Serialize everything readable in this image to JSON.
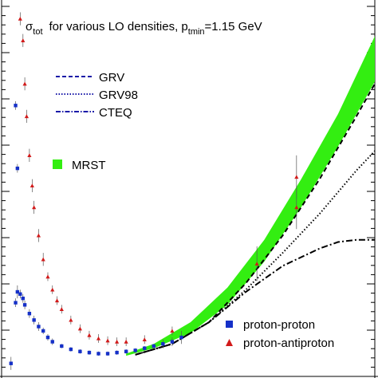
{
  "chart_data": {
    "type": "scatter",
    "title": {
      "sigma": "σ",
      "sigma_sub": "tot",
      "text": "for various LO densities, p",
      "p_sub": "tmin",
      "tail": "=1.15 GeV"
    },
    "xlabel": "",
    "ylabel": "",
    "xlim": [
      1.0,
      5.0
    ],
    "ylim": [
      30,
      200
    ],
    "grid": false,
    "legend_top": {
      "placement": "top-left",
      "entries": [
        {
          "label": "GRV",
          "style": "dashed",
          "color": "#1a1aa8"
        },
        {
          "label": "GRV98",
          "style": "dotted",
          "color": "#1a1aa8"
        },
        {
          "label": "CTEQ",
          "style": "dashdot",
          "color": "#1a1aa8"
        }
      ]
    },
    "legend_mrst": {
      "label": "MRST",
      "color": "#33ee11"
    },
    "legend_bottom": {
      "placement": "bottom-right",
      "entries": [
        {
          "label": "proton-proton",
          "marker": "square",
          "color": "#1530c8"
        },
        {
          "label": "proton-antiproton",
          "marker": "triangle",
          "color": "#d21a1a"
        }
      ]
    },
    "series": [
      {
        "name": "MRST",
        "kind": "band",
        "color": "#33ee11",
        "x": [
          2.3,
          2.6,
          3.0,
          3.4,
          3.8,
          4.2,
          4.6,
          5.0
        ],
        "lower": [
          39.5,
          43,
          50,
          63,
          83,
          108,
          136,
          166
        ],
        "upper": [
          40.5,
          45,
          55,
          71,
          93,
          121,
          151,
          187
        ]
      },
      {
        "name": "GRV",
        "kind": "line",
        "style": "dashed",
        "color": "#000000",
        "x": [
          2.4,
          2.8,
          3.2,
          3.6,
          4.0,
          4.4,
          4.8,
          5.0
        ],
        "y": [
          40,
          45,
          55,
          73,
          95,
          121,
          150,
          165
        ]
      },
      {
        "name": "GRV98",
        "kind": "line",
        "style": "dotted",
        "color": "#000000",
        "x": [
          2.4,
          2.8,
          3.2,
          3.6,
          4.0,
          4.4,
          4.8,
          5.0
        ],
        "y": [
          40,
          45,
          55,
          70,
          87,
          105,
          125,
          134
        ]
      },
      {
        "name": "CTEQ",
        "kind": "line",
        "style": "dashdot",
        "color": "#000000",
        "x": [
          2.4,
          2.8,
          3.2,
          3.6,
          4.0,
          4.4,
          4.6,
          4.8,
          5.0
        ],
        "y": [
          40,
          45,
          55,
          69,
          81,
          89,
          92,
          93,
          93
        ]
      },
      {
        "name": "proton-proton",
        "kind": "points",
        "marker": "square",
        "color": "#1530c8",
        "x": [
          1.05,
          1.1,
          1.12,
          1.15,
          1.18,
          1.2,
          1.25,
          1.3,
          1.35,
          1.4,
          1.45,
          1.5,
          1.6,
          1.7,
          1.8,
          1.9,
          2.0,
          2.1,
          2.2,
          2.3,
          2.4,
          2.5,
          2.6,
          2.7,
          2.8,
          2.9,
          1.1,
          1.12
        ],
        "y": [
          36,
          64,
          69,
          68,
          66,
          63,
          59,
          56,
          53,
          51,
          48,
          46,
          44,
          42.5,
          41.5,
          41,
          40.5,
          40.5,
          41,
          41.5,
          42,
          43,
          44,
          45,
          46,
          48,
          155,
          126
        ],
        "err": [
          3,
          2,
          3,
          2,
          2,
          2,
          2,
          2,
          2,
          1.5,
          1.5,
          1.5,
          1,
          1,
          1,
          1,
          1,
          1,
          1,
          1,
          1,
          1,
          1,
          2,
          2,
          3,
          2,
          2
        ]
      },
      {
        "name": "proton-antiproton",
        "kind": "points",
        "marker": "triangle",
        "color": "#d21a1a",
        "x": [
          1.15,
          1.18,
          1.2,
          1.22,
          1.25,
          1.28,
          1.3,
          1.35,
          1.4,
          1.45,
          1.5,
          1.55,
          1.6,
          1.7,
          1.8,
          1.9,
          2.0,
          2.1,
          2.2,
          2.3,
          2.5,
          2.8,
          3.72,
          4.15,
          4.15
        ],
        "y": [
          195,
          185,
          165,
          150,
          132,
          118,
          108,
          95,
          84,
          76,
          70,
          65,
          61,
          56,
          52,
          49,
          47.5,
          46.5,
          46,
          46,
          47,
          51,
          82,
          108,
          122
        ],
        "err": [
          3,
          3,
          3,
          3,
          3,
          3,
          3,
          3,
          3,
          2,
          2,
          2,
          2,
          2,
          2,
          2,
          2,
          2,
          2,
          2,
          2,
          2,
          8,
          10,
          10
        ]
      }
    ]
  }
}
